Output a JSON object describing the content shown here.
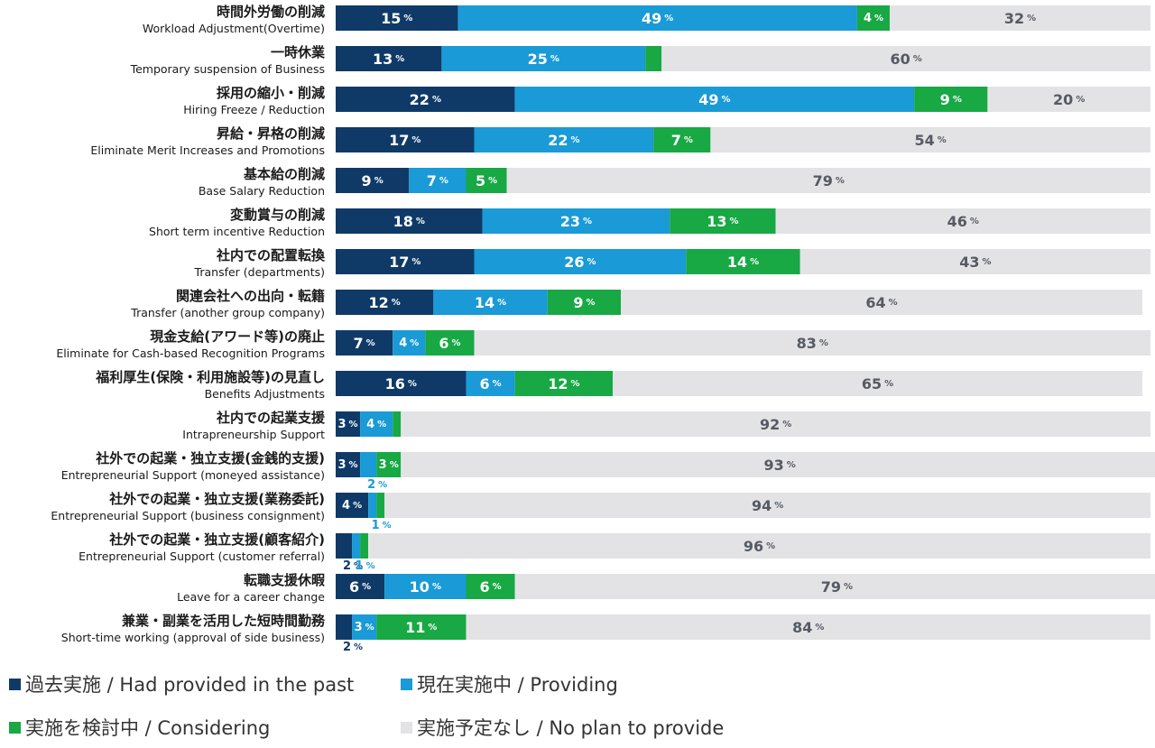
{
  "chart_data": {
    "type": "bar",
    "stacked": "horizontal-100-percent",
    "unit": "%",
    "series": [
      {
        "name": "過去実施 / Had provided in the past",
        "color": "#0f3a68"
      },
      {
        "name": "現在実施中 / Providing",
        "color": "#1a9ad6"
      },
      {
        "name": "実施を検討中 / Considering",
        "color": "#18a844"
      },
      {
        "name": "実施予定なし / No plan to provide",
        "color": "#e3e3e6"
      }
    ],
    "categories": [
      {
        "jp": "時間外労働の削減",
        "en": "Workload Adjustment(Overtime)",
        "values": [
          15,
          49,
          4,
          32
        ]
      },
      {
        "jp": "一時休業",
        "en": "Temporary suspension of Business",
        "values": [
          13,
          25,
          2,
          60
        ]
      },
      {
        "jp": "採用の縮小・削減",
        "en": "Hiring Freeze / Reduction",
        "values": [
          22,
          49,
          9,
          20
        ]
      },
      {
        "jp": "昇給・昇格の削減",
        "en": "Eliminate Merit Increases and Promotions",
        "values": [
          17,
          22,
          7,
          54
        ]
      },
      {
        "jp": "基本給の削減",
        "en": "Base Salary Reduction",
        "values": [
          9,
          7,
          5,
          79
        ]
      },
      {
        "jp": "変動賞与の削減",
        "en": "Short term incentive Reduction",
        "values": [
          18,
          23,
          13,
          46
        ]
      },
      {
        "jp": "社内での配置転換",
        "en": "Transfer (departments)",
        "values": [
          17,
          26,
          14,
          43
        ]
      },
      {
        "jp": "関連会社への出向・転籍",
        "en": "Transfer (another group company)",
        "values": [
          12,
          14,
          9,
          64
        ]
      },
      {
        "jp": "現金支給(アワード等)の廃止",
        "en": "Eliminate for Cash-based  Recognition Programs",
        "values": [
          7,
          4,
          6,
          83
        ]
      },
      {
        "jp": "福利厚生(保険・利用施設等)の見直し",
        "en": "Benefits Adjustments",
        "values": [
          16,
          6,
          12,
          65
        ]
      },
      {
        "jp": "社内での起業支援",
        "en": "Intrapreneurship Support",
        "values": [
          3,
          4,
          1,
          92
        ]
      },
      {
        "jp": "社外での起業・独立支援(金銭的支援)",
        "en": "Entrepreneurial Support (moneyed assistance)",
        "values": [
          3,
          2,
          3,
          93
        ]
      },
      {
        "jp": "社外での起業・独立支援(業務委託)",
        "en": "Entrepreneurial   Support (business consignment)",
        "values": [
          4,
          1,
          1,
          94
        ]
      },
      {
        "jp": "社外での起業・独立支援(顧客紹介)",
        "en": "Entrepreneurial   Support (customer referral)",
        "values": [
          2,
          1,
          1,
          96
        ]
      },
      {
        "jp": "転職支援休暇",
        "en": "Leave for a career change",
        "values": [
          6,
          10,
          6,
          79
        ]
      },
      {
        "jp": "兼業・副業を活用した短時間勤務",
        "en": "Short-time working (approval of side business)",
        "values": [
          2,
          3,
          11,
          84
        ]
      }
    ]
  }
}
